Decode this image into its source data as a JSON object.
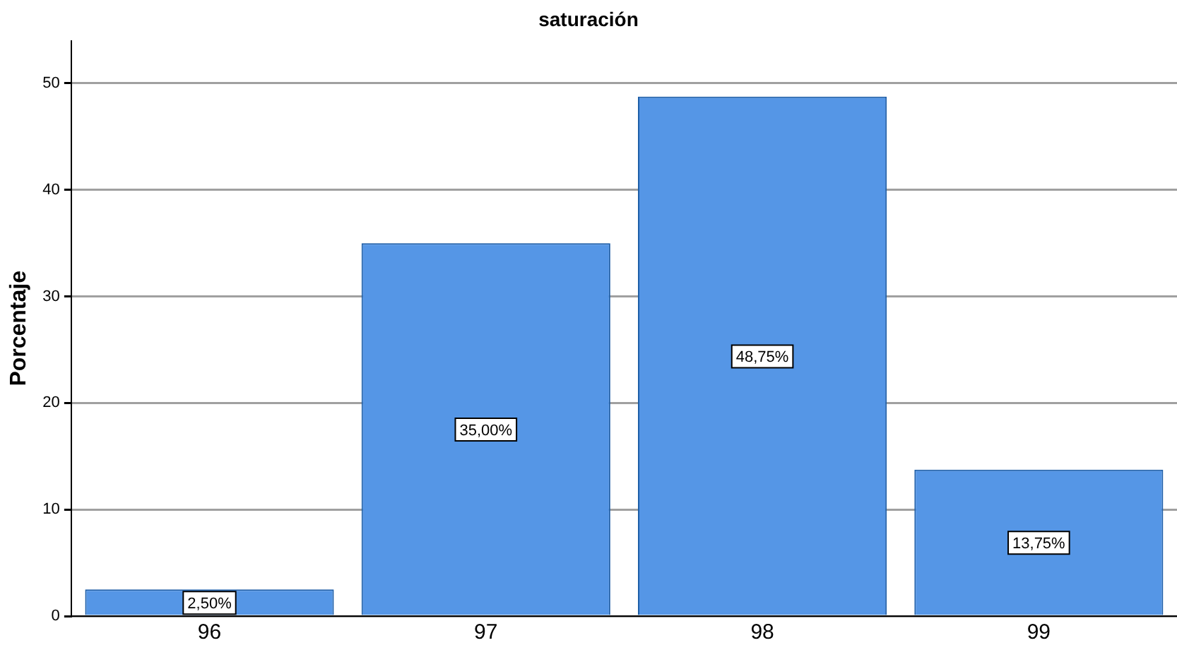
{
  "chart_data": {
    "type": "bar",
    "title": "saturación",
    "ylabel": "Porcentaje",
    "categories": [
      "96",
      "97",
      "98",
      "99"
    ],
    "values": [
      2.5,
      35,
      48.75,
      13.75
    ],
    "value_labels": [
      "2,50%",
      "35,00%",
      "48,75%",
      "13,75%"
    ],
    "color": "#5596e6",
    "ylim": [
      0,
      54
    ],
    "yticks": [
      0,
      10,
      20,
      30,
      40,
      50
    ],
    "grid": "y",
    "legend": false
  }
}
